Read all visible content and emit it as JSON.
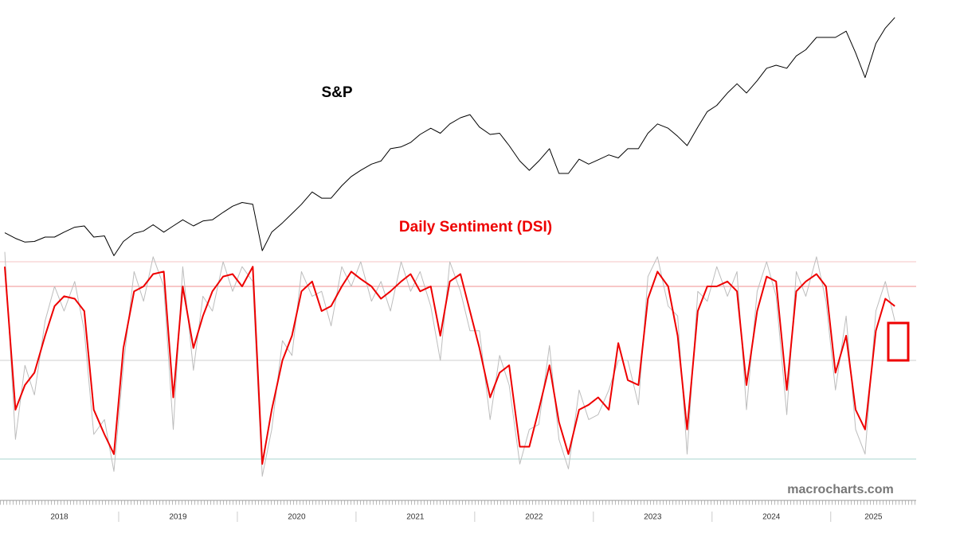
{
  "chart_data": {
    "type": "line",
    "title": "S&P",
    "subtitle": "Daily Sentiment (DSI)",
    "annotations": [
      "macrocharts.com"
    ],
    "xlim": [
      2018.0,
      2025.72
    ],
    "xticks": [
      {
        "value": 2018.5,
        "label": "2018"
      },
      {
        "value": 2019.5,
        "label": "2019"
      },
      {
        "value": 2020.5,
        "label": "2020"
      },
      {
        "value": 2021.5,
        "label": "2021"
      },
      {
        "value": 2022.5,
        "label": "2022"
      },
      {
        "value": 2023.5,
        "label": "2023"
      },
      {
        "value": 2024.5,
        "label": "2024"
      },
      {
        "value": 2025.36,
        "label": "2025"
      }
    ],
    "x_separators": [
      2019,
      2020,
      2021,
      2022,
      2023,
      2024,
      2025
    ],
    "ylim": [
      2000,
      6400
    ],
    "y2lim": [
      0,
      100
    ],
    "reference_lines": [
      {
        "value": 90,
        "color": "#f6c4c4"
      },
      {
        "value": 80,
        "color": "#f08f8f"
      },
      {
        "value": 50,
        "color": "#cfcfcf"
      },
      {
        "value": 10,
        "color": "#a9d6cf"
      }
    ],
    "x": [
      2018.04,
      2018.13,
      2018.21,
      2018.29,
      2018.38,
      2018.46,
      2018.54,
      2018.63,
      2018.71,
      2018.79,
      2018.88,
      2018.96,
      2019.04,
      2019.13,
      2019.21,
      2019.29,
      2019.38,
      2019.46,
      2019.54,
      2019.63,
      2019.71,
      2019.79,
      2019.88,
      2019.96,
      2020.04,
      2020.13,
      2020.21,
      2020.29,
      2020.38,
      2020.46,
      2020.54,
      2020.63,
      2020.71,
      2020.79,
      2020.88,
      2020.96,
      2021.04,
      2021.13,
      2021.21,
      2021.29,
      2021.38,
      2021.46,
      2021.54,
      2021.63,
      2021.71,
      2021.79,
      2021.88,
      2021.96,
      2022.04,
      2022.13,
      2022.21,
      2022.29,
      2022.38,
      2022.46,
      2022.54,
      2022.63,
      2022.71,
      2022.79,
      2022.88,
      2022.96,
      2023.04,
      2023.13,
      2023.21,
      2023.29,
      2023.38,
      2023.46,
      2023.54,
      2023.63,
      2023.71,
      2023.79,
      2023.88,
      2023.96,
      2024.04,
      2024.13,
      2024.21,
      2024.29,
      2024.38,
      2024.46,
      2024.54,
      2024.63,
      2024.71,
      2024.79,
      2024.88,
      2024.96,
      2025.04,
      2025.13,
      2025.21,
      2025.29,
      2025.38,
      2025.46,
      2025.54
    ],
    "series": [
      {
        "name": "DSI raw",
        "color": "#bdbdbd",
        "axis": "y2",
        "width": 1,
        "values": [
          94,
          18,
          48,
          36,
          66,
          80,
          70,
          82,
          62,
          20,
          26,
          5,
          48,
          86,
          74,
          92,
          80,
          22,
          88,
          46,
          76,
          70,
          90,
          78,
          88,
          82,
          3,
          22,
          58,
          52,
          86,
          76,
          78,
          64,
          88,
          80,
          90,
          74,
          82,
          70,
          90,
          78,
          86,
          72,
          50,
          90,
          78,
          62,
          62,
          26,
          52,
          40,
          8,
          22,
          24,
          56,
          18,
          6,
          38,
          26,
          28,
          38,
          50,
          50,
          32,
          84,
          92,
          72,
          68,
          12,
          78,
          74,
          88,
          76,
          86,
          30,
          78,
          90,
          76,
          28,
          86,
          76,
          92,
          74,
          38,
          68,
          22,
          12,
          70,
          82,
          66
        ]
      },
      {
        "name": "Daily Sentiment (DSI)",
        "color": "#ee0000",
        "axis": "y2",
        "width": 2,
        "values": [
          88,
          30,
          40,
          45,
          60,
          72,
          76,
          75,
          70,
          30,
          20,
          12,
          55,
          78,
          80,
          85,
          86,
          35,
          80,
          55,
          68,
          78,
          84,
          85,
          80,
          88,
          8,
          30,
          50,
          60,
          78,
          82,
          70,
          72,
          80,
          86,
          83,
          80,
          75,
          78,
          82,
          85,
          78,
          80,
          60,
          82,
          85,
          70,
          55,
          35,
          45,
          48,
          15,
          15,
          30,
          48,
          25,
          12,
          30,
          32,
          35,
          30,
          57,
          42,
          40,
          75,
          86,
          80,
          60,
          22,
          70,
          80,
          80,
          82,
          78,
          40,
          70,
          84,
          82,
          38,
          78,
          82,
          85,
          80,
          45,
          60,
          30,
          22,
          62,
          75,
          72
        ]
      },
      {
        "name": "S&P",
        "color": "#000000",
        "axis": "y",
        "width": 1,
        "values": [
          2790,
          2700,
          2640,
          2650,
          2720,
          2720,
          2800,
          2880,
          2900,
          2720,
          2740,
          2420,
          2650,
          2780,
          2820,
          2920,
          2800,
          2900,
          3000,
          2900,
          2980,
          3000,
          3120,
          3220,
          3280,
          3250,
          2500,
          2800,
          2950,
          3100,
          3250,
          3450,
          3350,
          3350,
          3550,
          3700,
          3800,
          3900,
          3950,
          4150,
          4180,
          4250,
          4380,
          4480,
          4400,
          4550,
          4650,
          4700,
          4500,
          4380,
          4400,
          4200,
          3950,
          3800,
          3950,
          4150,
          3750,
          3750,
          3980,
          3900,
          3970,
          4050,
          4000,
          4150,
          4150,
          4400,
          4550,
          4480,
          4350,
          4200,
          4500,
          4750,
          4850,
          5050,
          5200,
          5050,
          5250,
          5450,
          5500,
          5450,
          5650,
          5750,
          5950,
          5950,
          5950,
          6050,
          5700,
          5300,
          5850,
          6100,
          6270
        ]
      }
    ]
  }
}
